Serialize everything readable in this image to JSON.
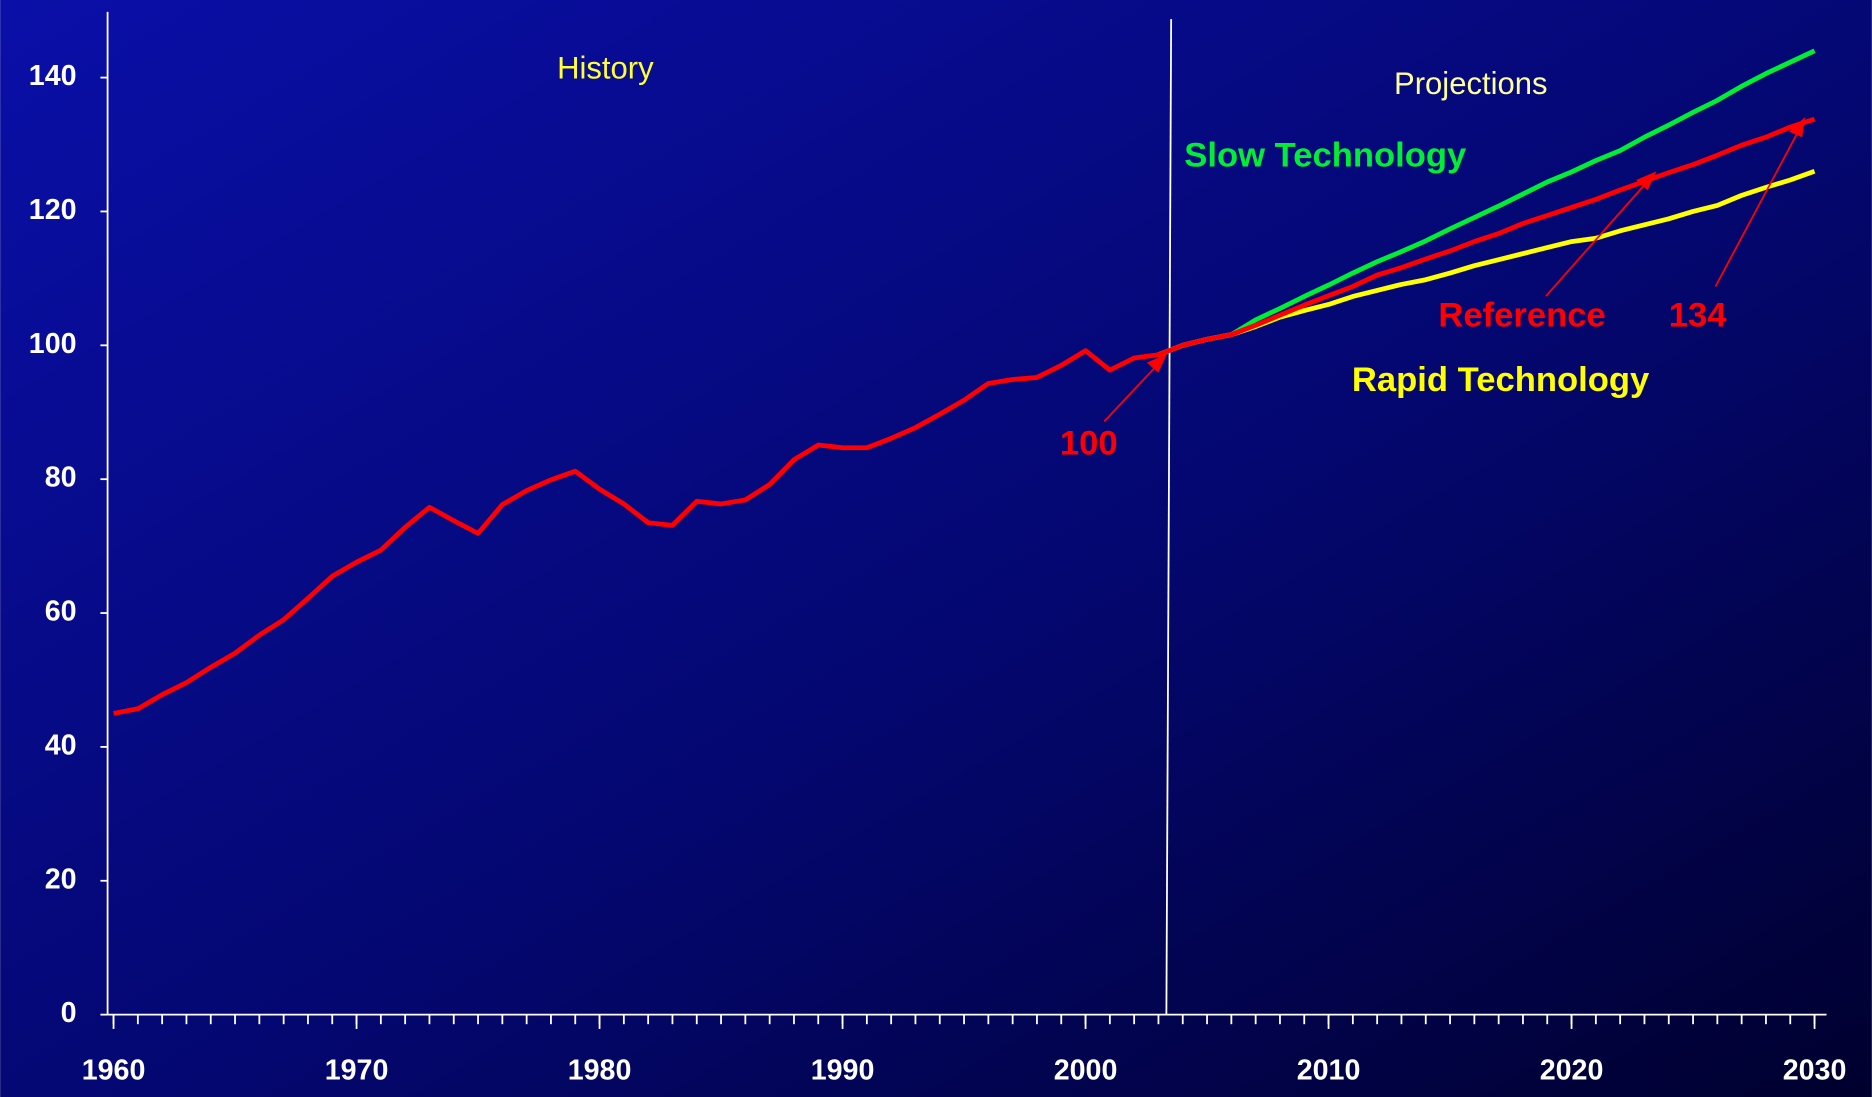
{
  "chart_data": {
    "type": "line",
    "x": [
      1960,
      1961,
      1962,
      1963,
      1964,
      1965,
      1966,
      1967,
      1968,
      1969,
      1970,
      1971,
      1972,
      1973,
      1974,
      1975,
      1976,
      1977,
      1978,
      1979,
      1980,
      1981,
      1982,
      1983,
      1984,
      1985,
      1986,
      1987,
      1988,
      1989,
      1990,
      1991,
      1992,
      1993,
      1994,
      1995,
      1996,
      1997,
      1998,
      1999,
      2000,
      2001,
      2002,
      2003,
      2004,
      2005,
      2006,
      2007,
      2008,
      2009,
      2010,
      2011,
      2012,
      2013,
      2014,
      2015,
      2016,
      2017,
      2018,
      2019,
      2020,
      2021,
      2022,
      2023,
      2024,
      2025,
      2026,
      2027,
      2028,
      2029,
      2030
    ],
    "series": [
      {
        "name": "Slow Technology",
        "color": "#00ee33",
        "values": [
          null,
          null,
          null,
          null,
          null,
          null,
          null,
          null,
          null,
          null,
          null,
          null,
          null,
          null,
          null,
          null,
          null,
          null,
          null,
          null,
          null,
          null,
          null,
          null,
          null,
          null,
          null,
          null,
          null,
          null,
          null,
          null,
          null,
          null,
          null,
          null,
          null,
          null,
          null,
          null,
          null,
          null,
          null,
          98.6,
          100,
          100.9,
          101.6,
          103.8,
          105.5,
          107.3,
          109,
          110.8,
          112.5,
          114,
          115.6,
          117.4,
          119.1,
          120.8,
          122.6,
          124.4,
          125.9,
          127.6,
          129.1,
          131.1,
          132.9,
          134.8,
          136.6,
          138.7,
          140.6,
          142.3,
          144
        ]
      },
      {
        "name": "Rapid Technology",
        "color": "#ffff00",
        "values": [
          null,
          null,
          null,
          null,
          null,
          null,
          null,
          null,
          null,
          null,
          null,
          null,
          null,
          null,
          null,
          null,
          null,
          null,
          null,
          null,
          null,
          null,
          null,
          null,
          null,
          null,
          null,
          null,
          null,
          null,
          null,
          null,
          null,
          null,
          null,
          null,
          null,
          null,
          null,
          null,
          null,
          null,
          null,
          98.6,
          100,
          100.9,
          101.6,
          102.8,
          104.2,
          105.2,
          106.1,
          107.3,
          108.2,
          109.1,
          109.8,
          110.8,
          111.9,
          112.8,
          113.7,
          114.6,
          115.5,
          116,
          117.1,
          118,
          118.9,
          120,
          120.9,
          122.4,
          123.6,
          124.7,
          126
        ]
      },
      {
        "name": "Reference",
        "color": "#ff0000",
        "values": [
          45,
          45.7,
          47.8,
          49.6,
          51.9,
          54,
          56.7,
          59,
          62.2,
          65.5,
          67.6,
          69.4,
          72.8,
          75.8,
          73.8,
          71.9,
          76.2,
          78.3,
          79.9,
          81.2,
          78.5,
          76.3,
          73.5,
          73.1,
          76.7,
          76.3,
          76.9,
          79.2,
          82.9,
          85.1,
          84.7,
          84.7,
          86.1,
          87.7,
          89.7,
          91.8,
          94.3,
          94.9,
          95.2,
          97,
          99.2,
          96.3,
          98.1,
          98.6,
          100,
          100.9,
          101.6,
          103,
          104.5,
          106,
          107.4,
          108.8,
          110.5,
          111.6,
          112.9,
          114.1,
          115.5,
          116.7,
          118.2,
          119.4,
          120.6,
          121.8,
          123.2,
          124.5,
          125.8,
          127,
          128.4,
          129.9,
          131.1,
          132.6,
          133.8
        ]
      }
    ],
    "annotations": [
      "History",
      "Projections",
      "100",
      "134"
    ],
    "xlim": [
      1960,
      2030
    ],
    "xticks": [
      1960,
      1970,
      1980,
      1990,
      2000,
      2010,
      2020,
      2030
    ],
    "ylim": [
      0,
      140
    ],
    "yticks": [
      0,
      20,
      40,
      60,
      80,
      100,
      120,
      140
    ],
    "grid": false
  }
}
